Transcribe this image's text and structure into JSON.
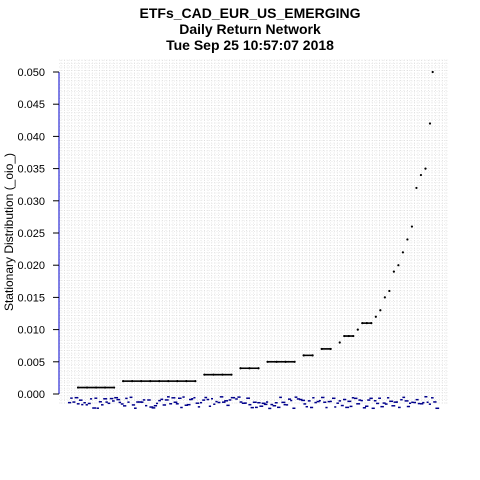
{
  "chart_data": {
    "type": "scatter",
    "title_lines": [
      "ETFs_CAD_EUR_US_EMERGING",
      "Daily Return Network",
      "Tue Sep 25 10:57:07 2018"
    ],
    "xlabel": "",
    "ylabel": "Stationary Distribution (_oio_)",
    "ylim": [
      -0.0015,
      0.051
    ],
    "xlim": [
      0,
      410
    ],
    "y_ticks": [
      "0.000",
      "0.005",
      "0.010",
      "0.015",
      "0.020",
      "0.025",
      "0.030",
      "0.035",
      "0.040",
      "0.045",
      "0.050"
    ],
    "grid": true,
    "colors": {
      "points": "#000000",
      "labels": "#00008B",
      "axis": "#000000",
      "y_axis_line": "#0000CD"
    },
    "series": [
      {
        "x": [
          10,
          20,
          30,
          40,
          50,
          60,
          70,
          80,
          90,
          100,
          110,
          120,
          130,
          140,
          150,
          160,
          170,
          180,
          190,
          200,
          210,
          220,
          230,
          240,
          250,
          260,
          270,
          280,
          290,
          300,
          305,
          310,
          315,
          320,
          325,
          330,
          335,
          340,
          345,
          350,
          355,
          360,
          365,
          370,
          375,
          380,
          385,
          390,
          395,
          400,
          403
        ],
        "y": [
          0.001,
          0.001,
          0.001,
          0.001,
          0.001,
          0.002,
          0.002,
          0.002,
          0.002,
          0.002,
          0.002,
          0.002,
          0.002,
          0.002,
          0.003,
          0.003,
          0.003,
          0.003,
          0.004,
          0.004,
          0.004,
          0.005,
          0.005,
          0.005,
          0.005,
          0.006,
          0.006,
          0.007,
          0.007,
          0.008,
          0.009,
          0.009,
          0.009,
          0.01,
          0.011,
          0.011,
          0.011,
          0.012,
          0.013,
          0.015,
          0.016,
          0.019,
          0.02,
          0.022,
          0.024,
          0.026,
          0.032,
          0.034,
          0.035,
          0.042,
          0.05
        ]
      }
    ]
  }
}
